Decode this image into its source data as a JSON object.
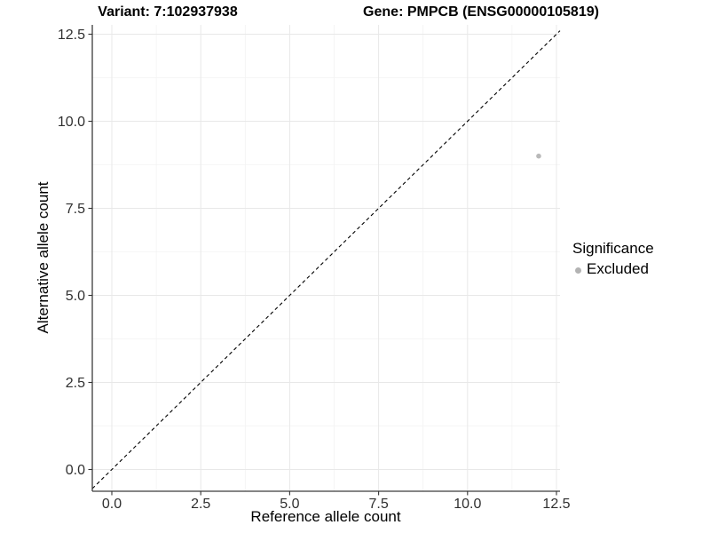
{
  "chart_data": {
    "type": "scatter",
    "titles": {
      "variant": "Variant: 7:102937938",
      "gene": "Gene: PMPCB (ENSG00000105819)"
    },
    "xlabel": "Reference allele count",
    "ylabel": "Alternative allele count",
    "x_ticks": {
      "values": [
        0,
        2.5,
        5,
        7.5,
        10,
        12.5
      ],
      "labels": [
        "0.0",
        "2.5",
        "5.0",
        "7.5",
        "10.0",
        "12.5"
      ]
    },
    "y_ticks": {
      "values": [
        0,
        2.5,
        5,
        7.5,
        10,
        12.5
      ],
      "labels": [
        "0.0",
        "2.5",
        "5.0",
        "7.5",
        "10.0",
        "12.5"
      ]
    },
    "x_minor": [
      1.25,
      3.75,
      6.25,
      8.75,
      11.25
    ],
    "y_minor": [
      1.25,
      3.75,
      6.25,
      8.75,
      11.25
    ],
    "xlim": [
      -0.55,
      12.6
    ],
    "ylim": [
      -0.62,
      12.76
    ],
    "grid": "major+minor",
    "identity_line": {
      "equation": "y = x",
      "style": "dashed",
      "color": "#000000"
    },
    "series": [
      {
        "name": "Excluded",
        "color": "#b9b9b9",
        "points": [
          {
            "x": 12,
            "y": 9
          }
        ]
      }
    ],
    "legend": {
      "title": "Significance",
      "position": "right",
      "items": [
        {
          "label": "Excluded",
          "color": "#b3b3b3"
        }
      ]
    },
    "colors": {
      "background": "#ffffff",
      "axis_line": "#3c3c3c",
      "tick_mark": "#333333",
      "tick_label": "#303030",
      "grid_major": "#e8e8e8",
      "grid_minor": "#f3f3f3",
      "title_text": "#000000"
    }
  }
}
